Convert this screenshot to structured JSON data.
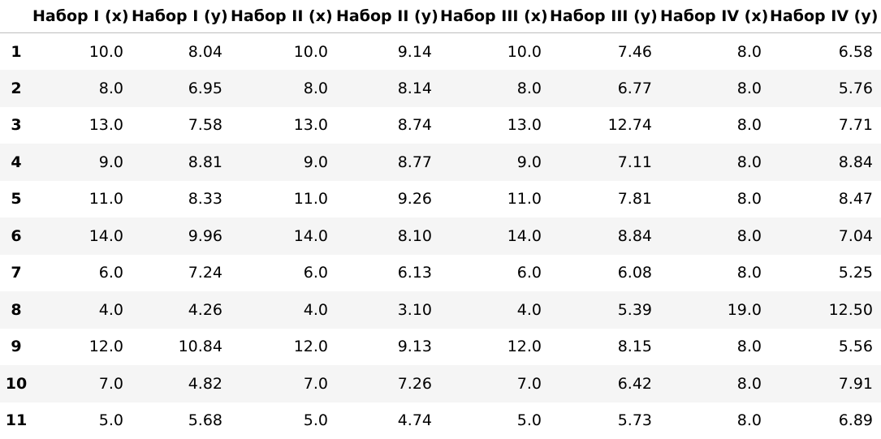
{
  "table": {
    "columns": [
      "Набор I (x)",
      "Набор I (y)",
      "Набор II (x)",
      "Набор II (y)",
      "Набор III (x)",
      "Набор III (y)",
      "Набор IV (x)",
      "Набор IV (y)"
    ],
    "rows": [
      {
        "index": "1",
        "cells": [
          "10.0",
          "8.04",
          "10.0",
          "9.14",
          "10.0",
          "7.46",
          "8.0",
          "6.58"
        ]
      },
      {
        "index": "2",
        "cells": [
          "8.0",
          "6.95",
          "8.0",
          "8.14",
          "8.0",
          "6.77",
          "8.0",
          "5.76"
        ]
      },
      {
        "index": "3",
        "cells": [
          "13.0",
          "7.58",
          "13.0",
          "8.74",
          "13.0",
          "12.74",
          "8.0",
          "7.71"
        ]
      },
      {
        "index": "4",
        "cells": [
          "9.0",
          "8.81",
          "9.0",
          "8.77",
          "9.0",
          "7.11",
          "8.0",
          "8.84"
        ]
      },
      {
        "index": "5",
        "cells": [
          "11.0",
          "8.33",
          "11.0",
          "9.26",
          "11.0",
          "7.81",
          "8.0",
          "8.47"
        ]
      },
      {
        "index": "6",
        "cells": [
          "14.0",
          "9.96",
          "14.0",
          "8.10",
          "14.0",
          "8.84",
          "8.0",
          "7.04"
        ]
      },
      {
        "index": "7",
        "cells": [
          "6.0",
          "7.24",
          "6.0",
          "6.13",
          "6.0",
          "6.08",
          "8.0",
          "5.25"
        ]
      },
      {
        "index": "8",
        "cells": [
          "4.0",
          "4.26",
          "4.0",
          "3.10",
          "4.0",
          "5.39",
          "19.0",
          "12.50"
        ]
      },
      {
        "index": "9",
        "cells": [
          "12.0",
          "10.84",
          "12.0",
          "9.13",
          "12.0",
          "8.15",
          "8.0",
          "5.56"
        ]
      },
      {
        "index": "10",
        "cells": [
          "7.0",
          "4.82",
          "7.0",
          "7.26",
          "7.0",
          "6.42",
          "8.0",
          "7.91"
        ]
      },
      {
        "index": "11",
        "cells": [
          "5.0",
          "5.68",
          "5.0",
          "4.74",
          "5.0",
          "5.73",
          "8.0",
          "6.89"
        ]
      }
    ]
  },
  "colors": {
    "background": "#ffffff",
    "row_stripe": "#f5f5f5",
    "header_border": "#bdbdbd",
    "text": "#000000"
  }
}
